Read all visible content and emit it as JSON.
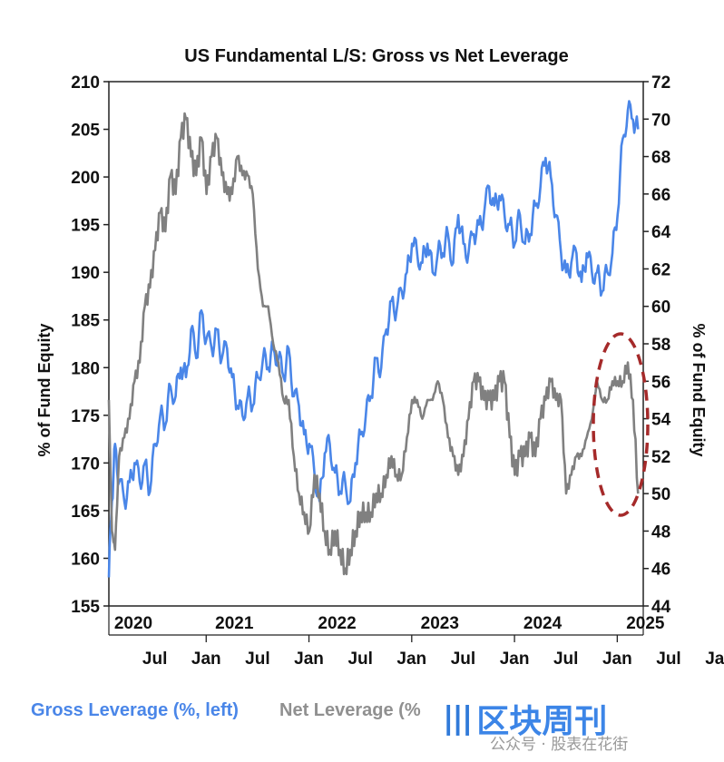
{
  "chart_data": {
    "type": "line",
    "title": "US Fundamental L/S: Gross vs Net Leverage",
    "left_axis": {
      "label": "% of Fund Equity",
      "ylim": [
        155,
        210
      ],
      "ticks": [
        155,
        160,
        165,
        170,
        175,
        180,
        185,
        190,
        195,
        200,
        205,
        210
      ]
    },
    "right_axis": {
      "label": "% of Fund Equity",
      "ylim": [
        44,
        72
      ],
      "ticks": [
        44,
        46,
        48,
        50,
        52,
        54,
        56,
        58,
        60,
        62,
        64,
        66,
        68,
        70,
        72
      ]
    },
    "x_axis": {
      "years": [
        "2020",
        "2021",
        "2022",
        "2023",
        "2024",
        "2025"
      ],
      "months": [
        "Jul",
        "Jan",
        "Jul",
        "Jan",
        "Jul",
        "Jan",
        "Jul",
        "Jan",
        "Jul",
        "Jan",
        "Jul",
        "Jan"
      ],
      "range": [
        2020.0,
        2025.2
      ]
    },
    "series": [
      {
        "name": "Gross Leverage (%, left)",
        "axis": "left",
        "color": "#4a86e8",
        "x": [
          2020.0,
          2020.03,
          2020.06,
          2020.1,
          2020.15,
          2020.2,
          2020.25,
          2020.3,
          2020.35,
          2020.4,
          2020.45,
          2020.5,
          2020.55,
          2020.6,
          2020.65,
          2020.7,
          2020.75,
          2020.8,
          2020.85,
          2020.9,
          2020.95,
          2021.0,
          2021.05,
          2021.1,
          2021.15,
          2021.2,
          2021.25,
          2021.3,
          2021.35,
          2021.4,
          2021.45,
          2021.5,
          2021.55,
          2021.6,
          2021.65,
          2021.7,
          2021.75,
          2021.8,
          2021.85,
          2021.9,
          2021.95,
          2022.0,
          2022.05,
          2022.1,
          2022.15,
          2022.2,
          2022.25,
          2022.3,
          2022.35,
          2022.4,
          2022.45,
          2022.5,
          2022.55,
          2022.6,
          2022.65,
          2022.7,
          2022.75,
          2022.8,
          2022.85,
          2022.9,
          2022.95,
          2023.0,
          2023.05,
          2023.1,
          2023.15,
          2023.2,
          2023.25,
          2023.3,
          2023.35,
          2023.4,
          2023.45,
          2023.5,
          2023.55,
          2023.6,
          2023.65,
          2023.7,
          2023.75,
          2023.8,
          2023.85,
          2023.9,
          2023.95,
          2024.0,
          2024.05,
          2024.1,
          2024.15,
          2024.2,
          2024.25,
          2024.3,
          2024.35,
          2024.4,
          2024.45,
          2024.5,
          2024.55,
          2024.6,
          2024.65,
          2024.7,
          2024.75,
          2024.8,
          2024.85,
          2024.9,
          2024.95,
          2025.0,
          2025.05,
          2025.1,
          2025.15
        ],
        "values": [
          158,
          166,
          172,
          168,
          166,
          168,
          170,
          168,
          170,
          167,
          172,
          175,
          174,
          178,
          177,
          180,
          179,
          184,
          181,
          186,
          183,
          182,
          184,
          181,
          182,
          179,
          176,
          175,
          177,
          176,
          179,
          181,
          180,
          182,
          181,
          179,
          182,
          177,
          176,
          173,
          172,
          169,
          166,
          171,
          172,
          169,
          167,
          168,
          166,
          170,
          173,
          175,
          177,
          181,
          180,
          184,
          187,
          186,
          188,
          190,
          193,
          192,
          191,
          193,
          190,
          192,
          192,
          194,
          191,
          196,
          193,
          192,
          194,
          195,
          196,
          199,
          197,
          198,
          196,
          195,
          193,
          196,
          193,
          194,
          197,
          199,
          202,
          200,
          196,
          192,
          190,
          191,
          192,
          189,
          192,
          190,
          190,
          188,
          190,
          192,
          196,
          204,
          207,
          206,
          205
        ]
      },
      {
        "name": "Net Leverage (%, right)",
        "axis": "right",
        "color": "#808080",
        "x": [
          2020.0,
          2020.03,
          2020.06,
          2020.1,
          2020.15,
          2020.2,
          2020.25,
          2020.3,
          2020.35,
          2020.4,
          2020.45,
          2020.5,
          2020.55,
          2020.6,
          2020.65,
          2020.7,
          2020.75,
          2020.8,
          2020.85,
          2020.9,
          2020.95,
          2021.0,
          2021.05,
          2021.1,
          2021.15,
          2021.2,
          2021.25,
          2021.3,
          2021.35,
          2021.4,
          2021.45,
          2021.5,
          2021.55,
          2021.6,
          2021.65,
          2021.7,
          2021.75,
          2021.8,
          2021.85,
          2021.9,
          2021.95,
          2022.0,
          2022.05,
          2022.1,
          2022.15,
          2022.2,
          2022.25,
          2022.3,
          2022.35,
          2022.4,
          2022.45,
          2022.5,
          2022.55,
          2022.6,
          2022.65,
          2022.7,
          2022.75,
          2022.8,
          2022.85,
          2022.9,
          2022.95,
          2023.0,
          2023.05,
          2023.1,
          2023.15,
          2023.2,
          2023.25,
          2023.3,
          2023.35,
          2023.4,
          2023.45,
          2023.5,
          2023.55,
          2023.6,
          2023.65,
          2023.7,
          2023.75,
          2023.8,
          2023.85,
          2023.9,
          2023.95,
          2024.0,
          2024.05,
          2024.1,
          2024.15,
          2024.2,
          2024.25,
          2024.3,
          2024.35,
          2024.4,
          2024.45,
          2024.5,
          2024.55,
          2024.6,
          2024.65,
          2024.7,
          2024.75,
          2024.8,
          2024.85,
          2024.9,
          2024.95,
          2025.0,
          2025.05,
          2025.1,
          2025.15
        ],
        "values": [
          55,
          48,
          47,
          52,
          53,
          54,
          56,
          57,
          60,
          61,
          63,
          65,
          64,
          67,
          66,
          69,
          70,
          68,
          67,
          69,
          66,
          68,
          69,
          67,
          66,
          66,
          68,
          67,
          67,
          66,
          62,
          60,
          60,
          58,
          57,
          55,
          55,
          52,
          50,
          49,
          48,
          51,
          50,
          48,
          47,
          48,
          47,
          46,
          47,
          48,
          49,
          49,
          49,
          50,
          50,
          51,
          52,
          51,
          51,
          53,
          55,
          55,
          54,
          55,
          55,
          56,
          55,
          53,
          52,
          51,
          52,
          54,
          56,
          56,
          55,
          55,
          55,
          56,
          56,
          53,
          51,
          52,
          52,
          53,
          52,
          54,
          55,
          56,
          55,
          55,
          50,
          51,
          52,
          52,
          53,
          54,
          56,
          55,
          55,
          56,
          56,
          56,
          57,
          55,
          50
        ]
      }
    ]
  },
  "annotation": {
    "type": "dashed-ellipse",
    "color": "#a52a2a"
  },
  "legend": {
    "gross": {
      "label": "Gross Leverage (%, left)",
      "color": "#4a86e8"
    },
    "net": {
      "label": "Net Leverage (%",
      "color": "#909090"
    }
  },
  "watermark": {
    "logo": "|||",
    "text": "区块周刊",
    "small": "公众号 · 股表在花街"
  }
}
